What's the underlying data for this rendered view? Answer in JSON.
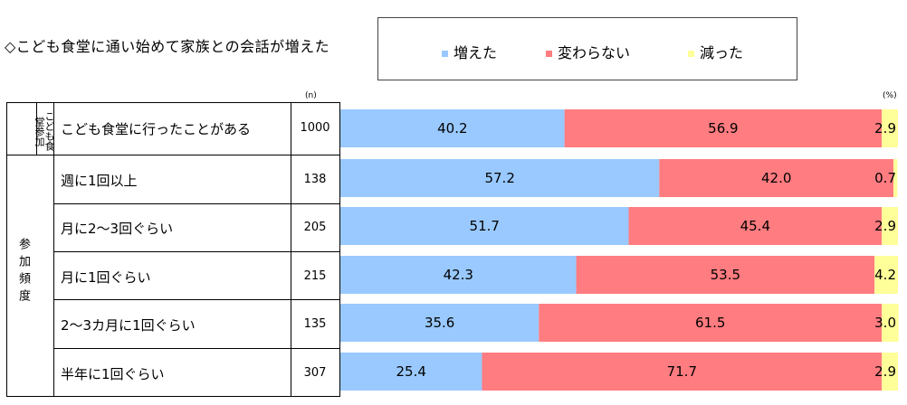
{
  "title": "◇こども食堂に通い始めて家族との会話が増えた",
  "legend": {
    "items": [
      {
        "label": "増えた",
        "color": "#99c9ff"
      },
      {
        "label": "変わらない",
        "color": "#ff7c80"
      },
      {
        "label": "減った",
        "color": "#ffff99"
      }
    ]
  },
  "units": {
    "n": "(n)",
    "percent": "(%)"
  },
  "groups": [
    {
      "label": "こども食堂参加"
    },
    {
      "label": "参加頻度"
    }
  ],
  "chart_data": {
    "type": "bar",
    "orientation": "horizontal",
    "stacked": true,
    "title": "◇こども食堂に通い始めて家族との会話が増えた",
    "categories": [
      "こども食堂に行ったことがある",
      "週に1回以上",
      "月に2～3回ぐらい",
      "月に1回ぐらい",
      "2～3カ月に1回ぐらい",
      "半年に1回ぐらい"
    ],
    "n": [
      "1000",
      "138",
      "205",
      "215",
      "135",
      "307"
    ],
    "series": [
      {
        "name": "増えた",
        "values": [
          40.2,
          57.2,
          51.7,
          42.3,
          35.6,
          25.4
        ],
        "labels": [
          "40.2",
          "57.2",
          "51.7",
          "42.3",
          "35.6",
          "25.4"
        ]
      },
      {
        "name": "変わらない",
        "values": [
          56.9,
          42.0,
          45.4,
          53.5,
          61.5,
          71.7
        ],
        "labels": [
          "56.9",
          "42.0",
          "45.4",
          "53.5",
          "61.5",
          "71.7"
        ]
      },
      {
        "name": "減った",
        "values": [
          2.9,
          0.7,
          2.9,
          4.2,
          3.0,
          2.9
        ],
        "labels": [
          "2.9",
          "0.7",
          "2.9",
          "4.2",
          "3.0",
          "2.9"
        ]
      }
    ],
    "xlim": [
      0,
      100
    ],
    "unit": "%"
  }
}
